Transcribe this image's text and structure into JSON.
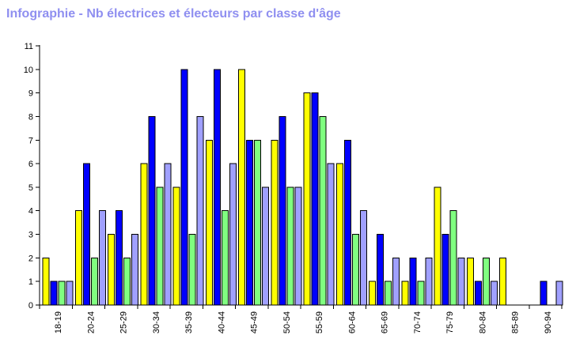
{
  "chart_data": {
    "type": "bar",
    "title": "Infographie - Nb électrices et électeurs par classe d'âge",
    "xlabel": "",
    "ylabel": "",
    "ylim": [
      0,
      11
    ],
    "yticks": [
      0,
      1,
      2,
      3,
      4,
      5,
      6,
      7,
      8,
      9,
      10,
      11
    ],
    "grid": false,
    "legend": "none",
    "categories": [
      "18-19",
      "20-24",
      "25-29",
      "30-34",
      "35-39",
      "40-44",
      "45-49",
      "50-54",
      "55-59",
      "60-64",
      "65-69",
      "70-74",
      "75-79",
      "80-84",
      "85-89",
      "90-94"
    ],
    "series": [
      {
        "color": "#ffff00",
        "values": [
          2,
          4,
          3,
          6,
          5,
          7,
          10,
          7,
          9,
          6,
          1,
          1,
          5,
          2,
          2,
          0
        ]
      },
      {
        "color": "#0000ff",
        "values": [
          1,
          6,
          4,
          8,
          10,
          10,
          7,
          8,
          9,
          7,
          3,
          2,
          3,
          1,
          0,
          1
        ]
      },
      {
        "color": "#80ff80",
        "values": [
          1,
          2,
          2,
          5,
          3,
          4,
          7,
          5,
          8,
          3,
          1,
          1,
          4,
          2,
          0,
          0
        ]
      },
      {
        "color": "#a0a0ff",
        "values": [
          1,
          4,
          3,
          6,
          8,
          6,
          5,
          5,
          6,
          4,
          2,
          2,
          2,
          1,
          0,
          1
        ]
      }
    ]
  }
}
